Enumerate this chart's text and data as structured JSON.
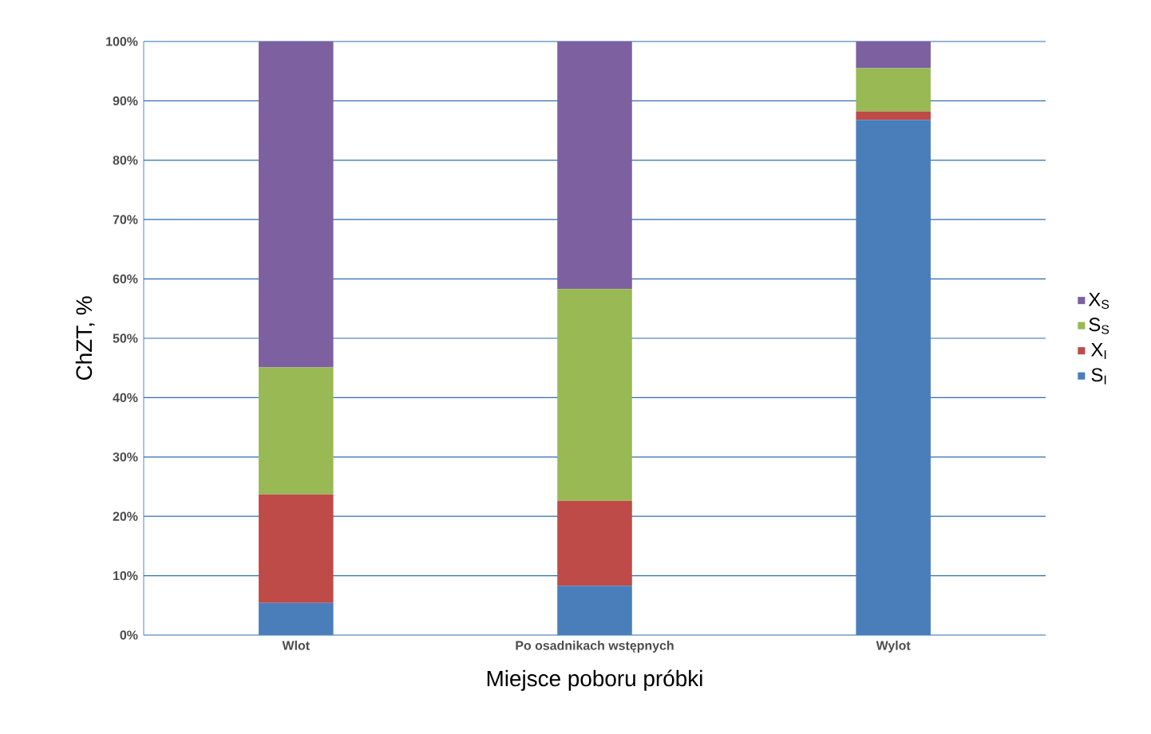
{
  "chart_data": {
    "type": "bar",
    "stacked": true,
    "xlabel": "Miejsce poboru próbki",
    "ylabel": "ChZT, %",
    "categories": [
      "Wlot",
      "Po osadnikach wstępnych",
      "Wylot"
    ],
    "series": [
      {
        "name": "S$_{I}$",
        "color": "#4a7ebb",
        "values": [
          5.4,
          8.3,
          86.8
        ]
      },
      {
        "name": "X$_{I}$",
        "color": "#be4b48",
        "values": [
          18.3,
          14.3,
          1.4
        ]
      },
      {
        "name": "S$_{S}$",
        "color": "#98b954",
        "values": [
          21.4,
          35.7,
          7.3
        ]
      },
      {
        "name": "X$_{S}$",
        "color": "#7d60a0",
        "values": [
          54.9,
          41.7,
          4.5
        ]
      }
    ],
    "ylim": [
      0,
      100
    ],
    "yticks": [
      {
        "value": 0,
        "label": "0%"
      },
      {
        "value": 10,
        "label": "10%"
      },
      {
        "value": 20,
        "label": "20%"
      },
      {
        "value": 30,
        "label": "30%"
      },
      {
        "value": 40,
        "label": "40%"
      },
      {
        "value": 50,
        "label": "50%"
      },
      {
        "value": 60,
        "label": "60%"
      },
      {
        "value": 70,
        "label": "70%"
      },
      {
        "value": 80,
        "label": "80%"
      },
      {
        "value": 90,
        "label": "90%"
      },
      {
        "value": 100,
        "label": "100%"
      }
    ],
    "grid": "y",
    "legend": "right"
  }
}
